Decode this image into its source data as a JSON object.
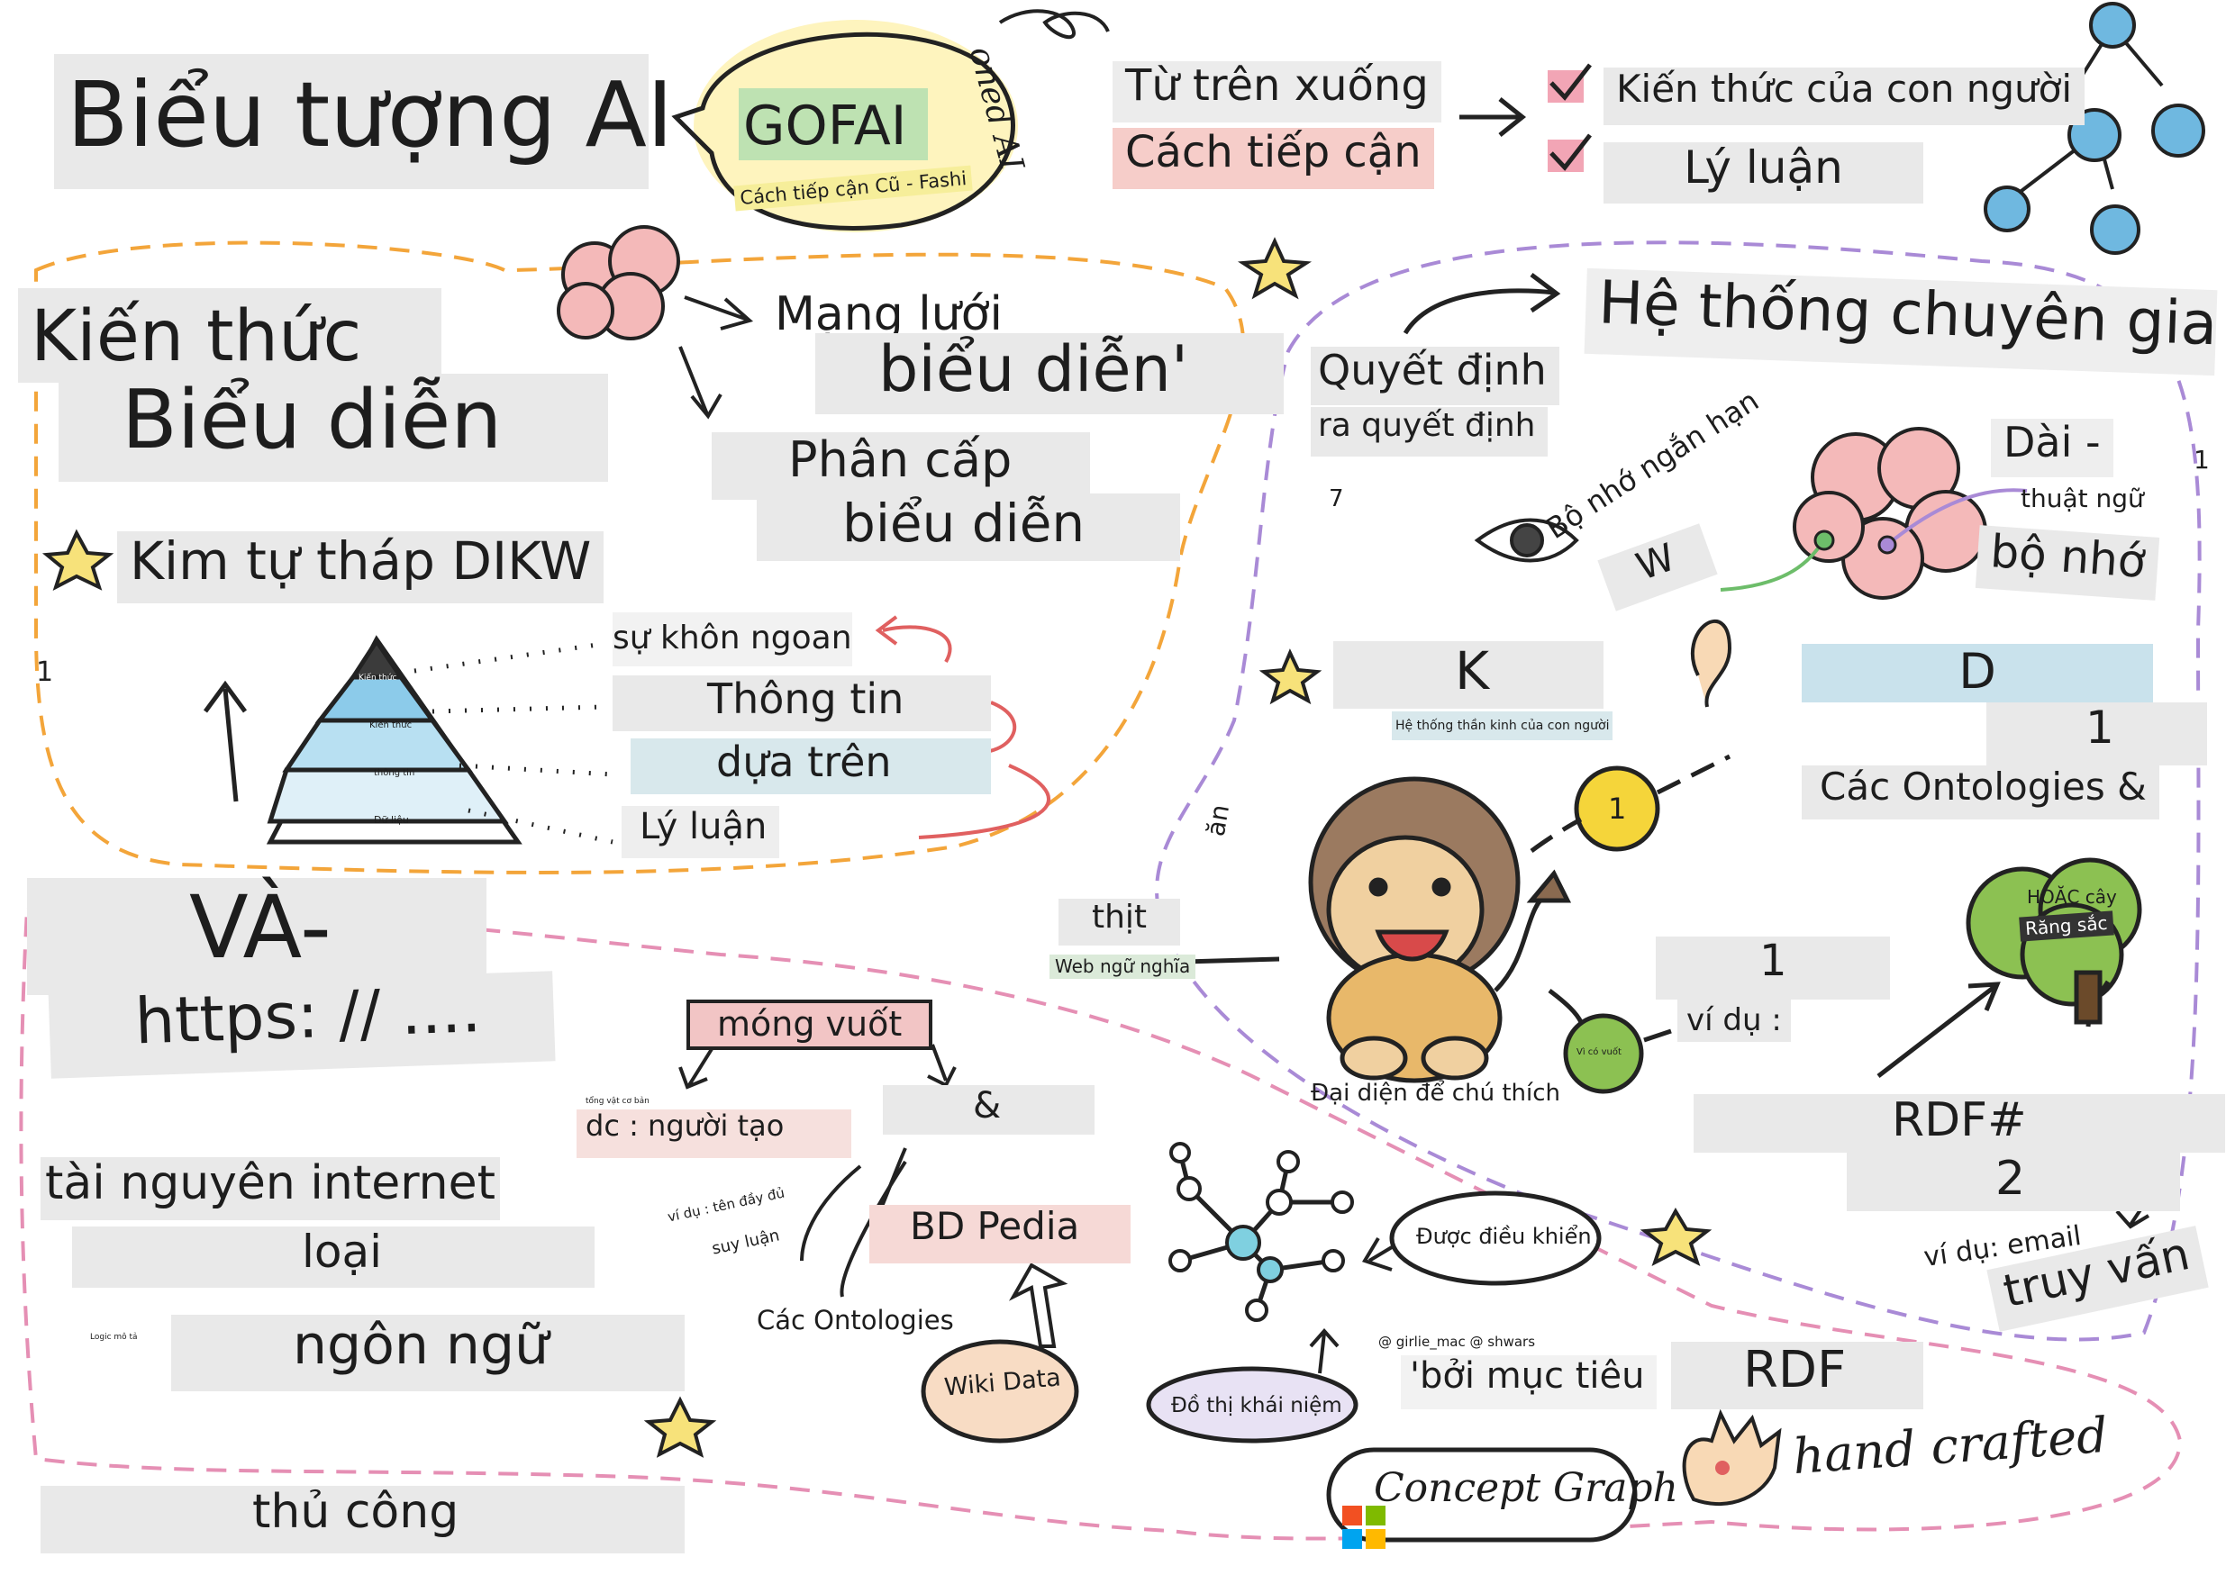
{
  "title": "Biểu tượng AI",
  "gofai": {
    "label": "GOFAI",
    "subtitle": "Cách tiếp cận Cũ - Fashi",
    "arc_text": "oned AI"
  },
  "top_down": {
    "line1": "Từ trên xuống",
    "line2": "Cách tiếp cận"
  },
  "checklist": [
    "Kiến thức của con người",
    "Lý luận"
  ],
  "knowledge_repr": {
    "line1": "Kiến thức",
    "line2": "Biểu diễn"
  },
  "networks": {
    "line1": "Mạng lưới",
    "line2": "biểu diễn'"
  },
  "hierarchy": {
    "line1": "Phân cấp",
    "line2": "biểu diễn"
  },
  "dikw": {
    "title": "Kim tự tháp DIKW",
    "levels": [
      "Kiến thức",
      "Kiến thức",
      "thông tin",
      "Dữ liệu"
    ],
    "labels": [
      "sự khôn ngoan",
      "Thông tin",
      "dựa trên",
      "Lý luận"
    ],
    "side_number": "1"
  },
  "expert": {
    "title": "Hệ thống chuyên gia",
    "decision1": "Quyết định",
    "decision2": "ra quyết định",
    "long_term": "Dài -",
    "term": "thuật ngữ",
    "memory": "bộ nhớ",
    "short_term": "Bộ nhớ ngắn hạn",
    "w_letter": "W",
    "k_letter": "K",
    "d_letter": "D",
    "neural": "Hệ thống thần kinh của con người",
    "number_7": "7",
    "number_1": "1"
  },
  "ontology": {
    "number1": "1",
    "label": "Các Ontologies &",
    "tree_line1": "HOẶC cây",
    "tree_line2": "Răng sắc",
    "example_number": "1",
    "example": "ví dụ :",
    "ball_number": "1",
    "green_ball": "Vì có vuốt"
  },
  "lion": {
    "caption": "Đại diện để chú thích",
    "meat": "thịt",
    "semantic_web": "Web ngữ nghĩa",
    "eat": "ăn"
  },
  "and_section": {
    "title": "VÀ-",
    "url": "https: // ...."
  },
  "internet": {
    "line1": "tài nguyên internet",
    "line2": "loại",
    "line3": "ngôn ngữ",
    "logic": "Logic mô tả",
    "handcrafted": "thủ công"
  },
  "claws": {
    "label": "móng vuốt",
    "small_top": "tổng vật cơ bản",
    "dc": "dc : người tạo",
    "amp": "&",
    "example": "ví dụ : tên đầy đủ",
    "reason": "suy luận",
    "dbpedia": "BD Pedia",
    "ontologies": "Các Ontologies",
    "wikidata": "Wiki Data"
  },
  "rdf": {
    "rdf_hash": "RDF#",
    "two": "2",
    "example_email": "ví dụ: email",
    "query": "truy vấn",
    "rdf": "RDF",
    "handcrafted": "hand crafted"
  },
  "concept": {
    "controlled": "Được điều khiển",
    "twitter": "@ girlie_mac @ shwars",
    "graph_vi": "Đồ thị khái niệm",
    "by_target": "'bởi mục tiêu",
    "graph_en": "Concept Graph"
  },
  "colors": {
    "orange_dash": "#f3a53a",
    "purple_dash": "#a98ad6",
    "pink_dash": "#e58fb4",
    "blue": "#6fb8e0",
    "yellow": "#f5d53a",
    "pink": "#f2b5b5",
    "green": "#8cc152",
    "lion": "#e8b86a"
  }
}
